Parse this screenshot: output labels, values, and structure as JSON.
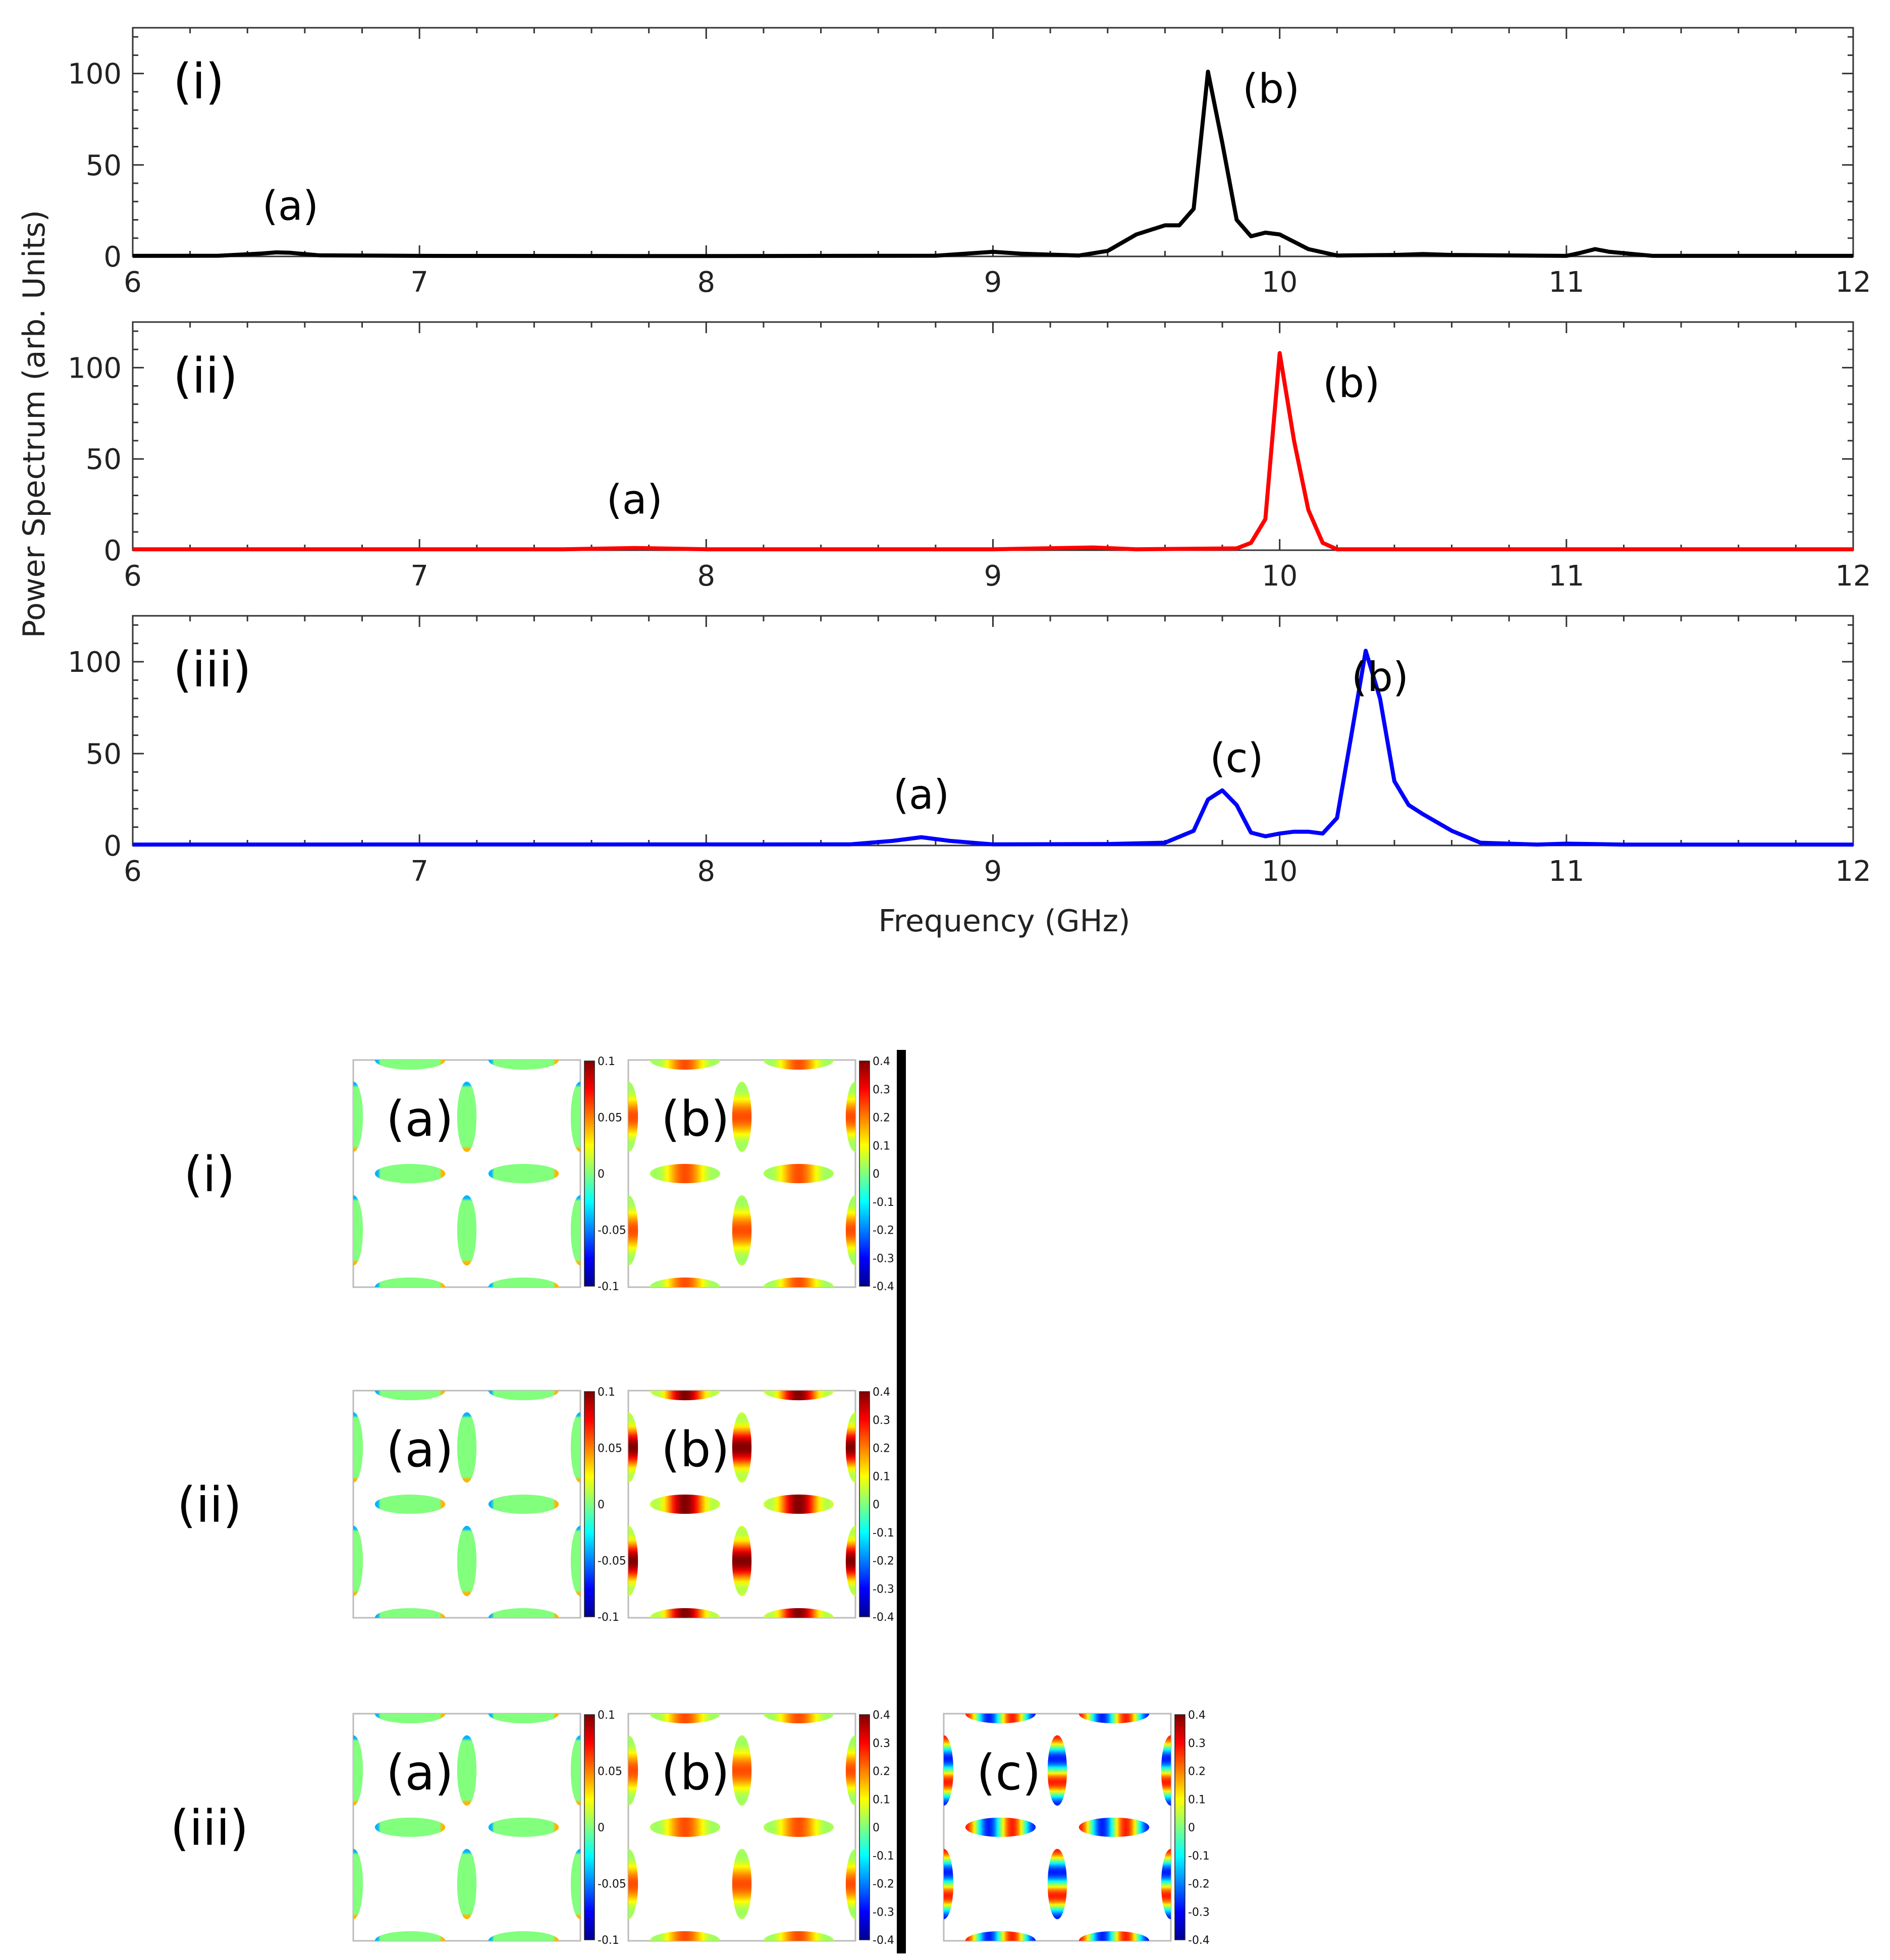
{
  "chart_data": {
    "type": "line",
    "xlabel": "Frequency (GHz)",
    "ylabel": "Power Spectrum (arb. Units)",
    "xlim": [
      6,
      12
    ],
    "ylim": [
      0,
      125
    ],
    "x_ticks": [
      "6",
      "7",
      "8",
      "9",
      "10",
      "11",
      "12"
    ],
    "y_ticks": [
      "0",
      "50",
      "100"
    ],
    "panels": [
      {
        "label": "(i)",
        "color": "#000000",
        "peak_labels": [
          {
            "text": "(a)",
            "x": 6.55,
            "y": 20
          },
          {
            "text": "(b)",
            "x": 9.97,
            "y": 84
          }
        ],
        "points": [
          [
            6.0,
            0.3
          ],
          [
            6.3,
            0.4
          ],
          [
            6.45,
            1.6
          ],
          [
            6.5,
            2.2
          ],
          [
            6.55,
            2.0
          ],
          [
            6.65,
            0.6
          ],
          [
            7.0,
            0.3
          ],
          [
            8.0,
            0.2
          ],
          [
            8.8,
            0.4
          ],
          [
            9.0,
            2.5
          ],
          [
            9.1,
            1.5
          ],
          [
            9.3,
            0.5
          ],
          [
            9.4,
            3
          ],
          [
            9.5,
            12
          ],
          [
            9.6,
            17
          ],
          [
            9.65,
            17
          ],
          [
            9.7,
            26
          ],
          [
            9.75,
            101
          ],
          [
            9.8,
            62
          ],
          [
            9.85,
            20
          ],
          [
            9.9,
            11
          ],
          [
            9.95,
            13
          ],
          [
            10.0,
            12
          ],
          [
            10.1,
            4
          ],
          [
            10.2,
            0.5
          ],
          [
            10.4,
            0.8
          ],
          [
            10.5,
            1.3
          ],
          [
            10.6,
            0.8
          ],
          [
            11.0,
            0.3
          ],
          [
            11.05,
            2.0
          ],
          [
            11.1,
            4.0
          ],
          [
            11.15,
            2.5
          ],
          [
            11.3,
            0.3
          ],
          [
            12.0,
            0.3
          ]
        ]
      },
      {
        "label": "(ii)",
        "color": "#ff0000",
        "peak_labels": [
          {
            "text": "(a)",
            "x": 7.75,
            "y": 20
          },
          {
            "text": "(b)",
            "x": 10.25,
            "y": 84
          }
        ],
        "points": [
          [
            6.0,
            0.5
          ],
          [
            7.5,
            0.5
          ],
          [
            7.75,
            1.2
          ],
          [
            8.0,
            0.5
          ],
          [
            9.0,
            0.5
          ],
          [
            9.35,
            1.5
          ],
          [
            9.5,
            0.5
          ],
          [
            9.85,
            1.0
          ],
          [
            9.9,
            4
          ],
          [
            9.95,
            17
          ],
          [
            10.0,
            108
          ],
          [
            10.05,
            60
          ],
          [
            10.1,
            22
          ],
          [
            10.15,
            4
          ],
          [
            10.2,
            0.5
          ],
          [
            12.0,
            0.5
          ]
        ]
      },
      {
        "label": "(iii)",
        "color": "#0000ff",
        "peak_labels": [
          {
            "text": "(a)",
            "x": 8.75,
            "y": 20
          },
          {
            "text": "(c)",
            "x": 9.85,
            "y": 40
          },
          {
            "text": "(b)",
            "x": 10.35,
            "y": 84
          }
        ],
        "points": [
          [
            6.0,
            0.5
          ],
          [
            8.5,
            0.6
          ],
          [
            8.65,
            2.5
          ],
          [
            8.75,
            4.5
          ],
          [
            8.85,
            2.5
          ],
          [
            9.0,
            0.6
          ],
          [
            9.4,
            0.8
          ],
          [
            9.6,
            1.5
          ],
          [
            9.7,
            8
          ],
          [
            9.75,
            25
          ],
          [
            9.8,
            30
          ],
          [
            9.85,
            22
          ],
          [
            9.9,
            7
          ],
          [
            9.95,
            5
          ],
          [
            10.0,
            6.5
          ],
          [
            10.05,
            7.5
          ],
          [
            10.1,
            7.5
          ],
          [
            10.15,
            6.5
          ],
          [
            10.2,
            15
          ],
          [
            10.25,
            60
          ],
          [
            10.3,
            106
          ],
          [
            10.35,
            80
          ],
          [
            10.4,
            35
          ],
          [
            10.45,
            22
          ],
          [
            10.5,
            17
          ],
          [
            10.6,
            8
          ],
          [
            10.7,
            1.5
          ],
          [
            10.9,
            0.5
          ],
          [
            11.0,
            1.0
          ],
          [
            11.2,
            0.5
          ],
          [
            12.0,
            0.5
          ]
        ]
      }
    ]
  },
  "mode_maps": [
    {
      "row_label": "(i)",
      "maps": [
        {
          "label": "(a)",
          "colorbar": [
            "0.1",
            "0.05",
            "0",
            "-0.05",
            "-0.1"
          ],
          "amplitude": 0.05
        },
        {
          "label": "(b)",
          "colorbar": [
            "0.4",
            "0.3",
            "0.2",
            "0.1",
            "0",
            "-0.1",
            "-0.2",
            "-0.3",
            "-0.4"
          ],
          "amplitude": 0.6
        }
      ]
    },
    {
      "row_label": "(ii)",
      "maps": [
        {
          "label": "(a)",
          "colorbar": [
            "0.1",
            "0.05",
            "0",
            "-0.05",
            "-0.1"
          ],
          "amplitude": 0.05
        },
        {
          "label": "(b)",
          "colorbar": [
            "0.4",
            "0.3",
            "0.2",
            "0.1",
            "0",
            "-0.1",
            "-0.2",
            "-0.3",
            "-0.4"
          ],
          "amplitude": 1.0
        }
      ]
    },
    {
      "row_label": "(iii)",
      "maps": [
        {
          "label": "(a)",
          "colorbar": [
            "0.1",
            "0.05",
            "0",
            "-0.05",
            "-0.1"
          ],
          "amplitude": 0.05
        },
        {
          "label": "(b)",
          "colorbar": [
            "0.4",
            "0.3",
            "0.2",
            "0.1",
            "0",
            "-0.1",
            "-0.2",
            "-0.3",
            "-0.4"
          ],
          "amplitude": 0.6
        },
        {
          "label": "(c)",
          "colorbar": [
            "0.4",
            "0.3",
            "0.2",
            "0.1",
            "0",
            "-0.1",
            "-0.2",
            "-0.3",
            "-0.4"
          ],
          "amplitude": 0.7
        }
      ]
    }
  ]
}
